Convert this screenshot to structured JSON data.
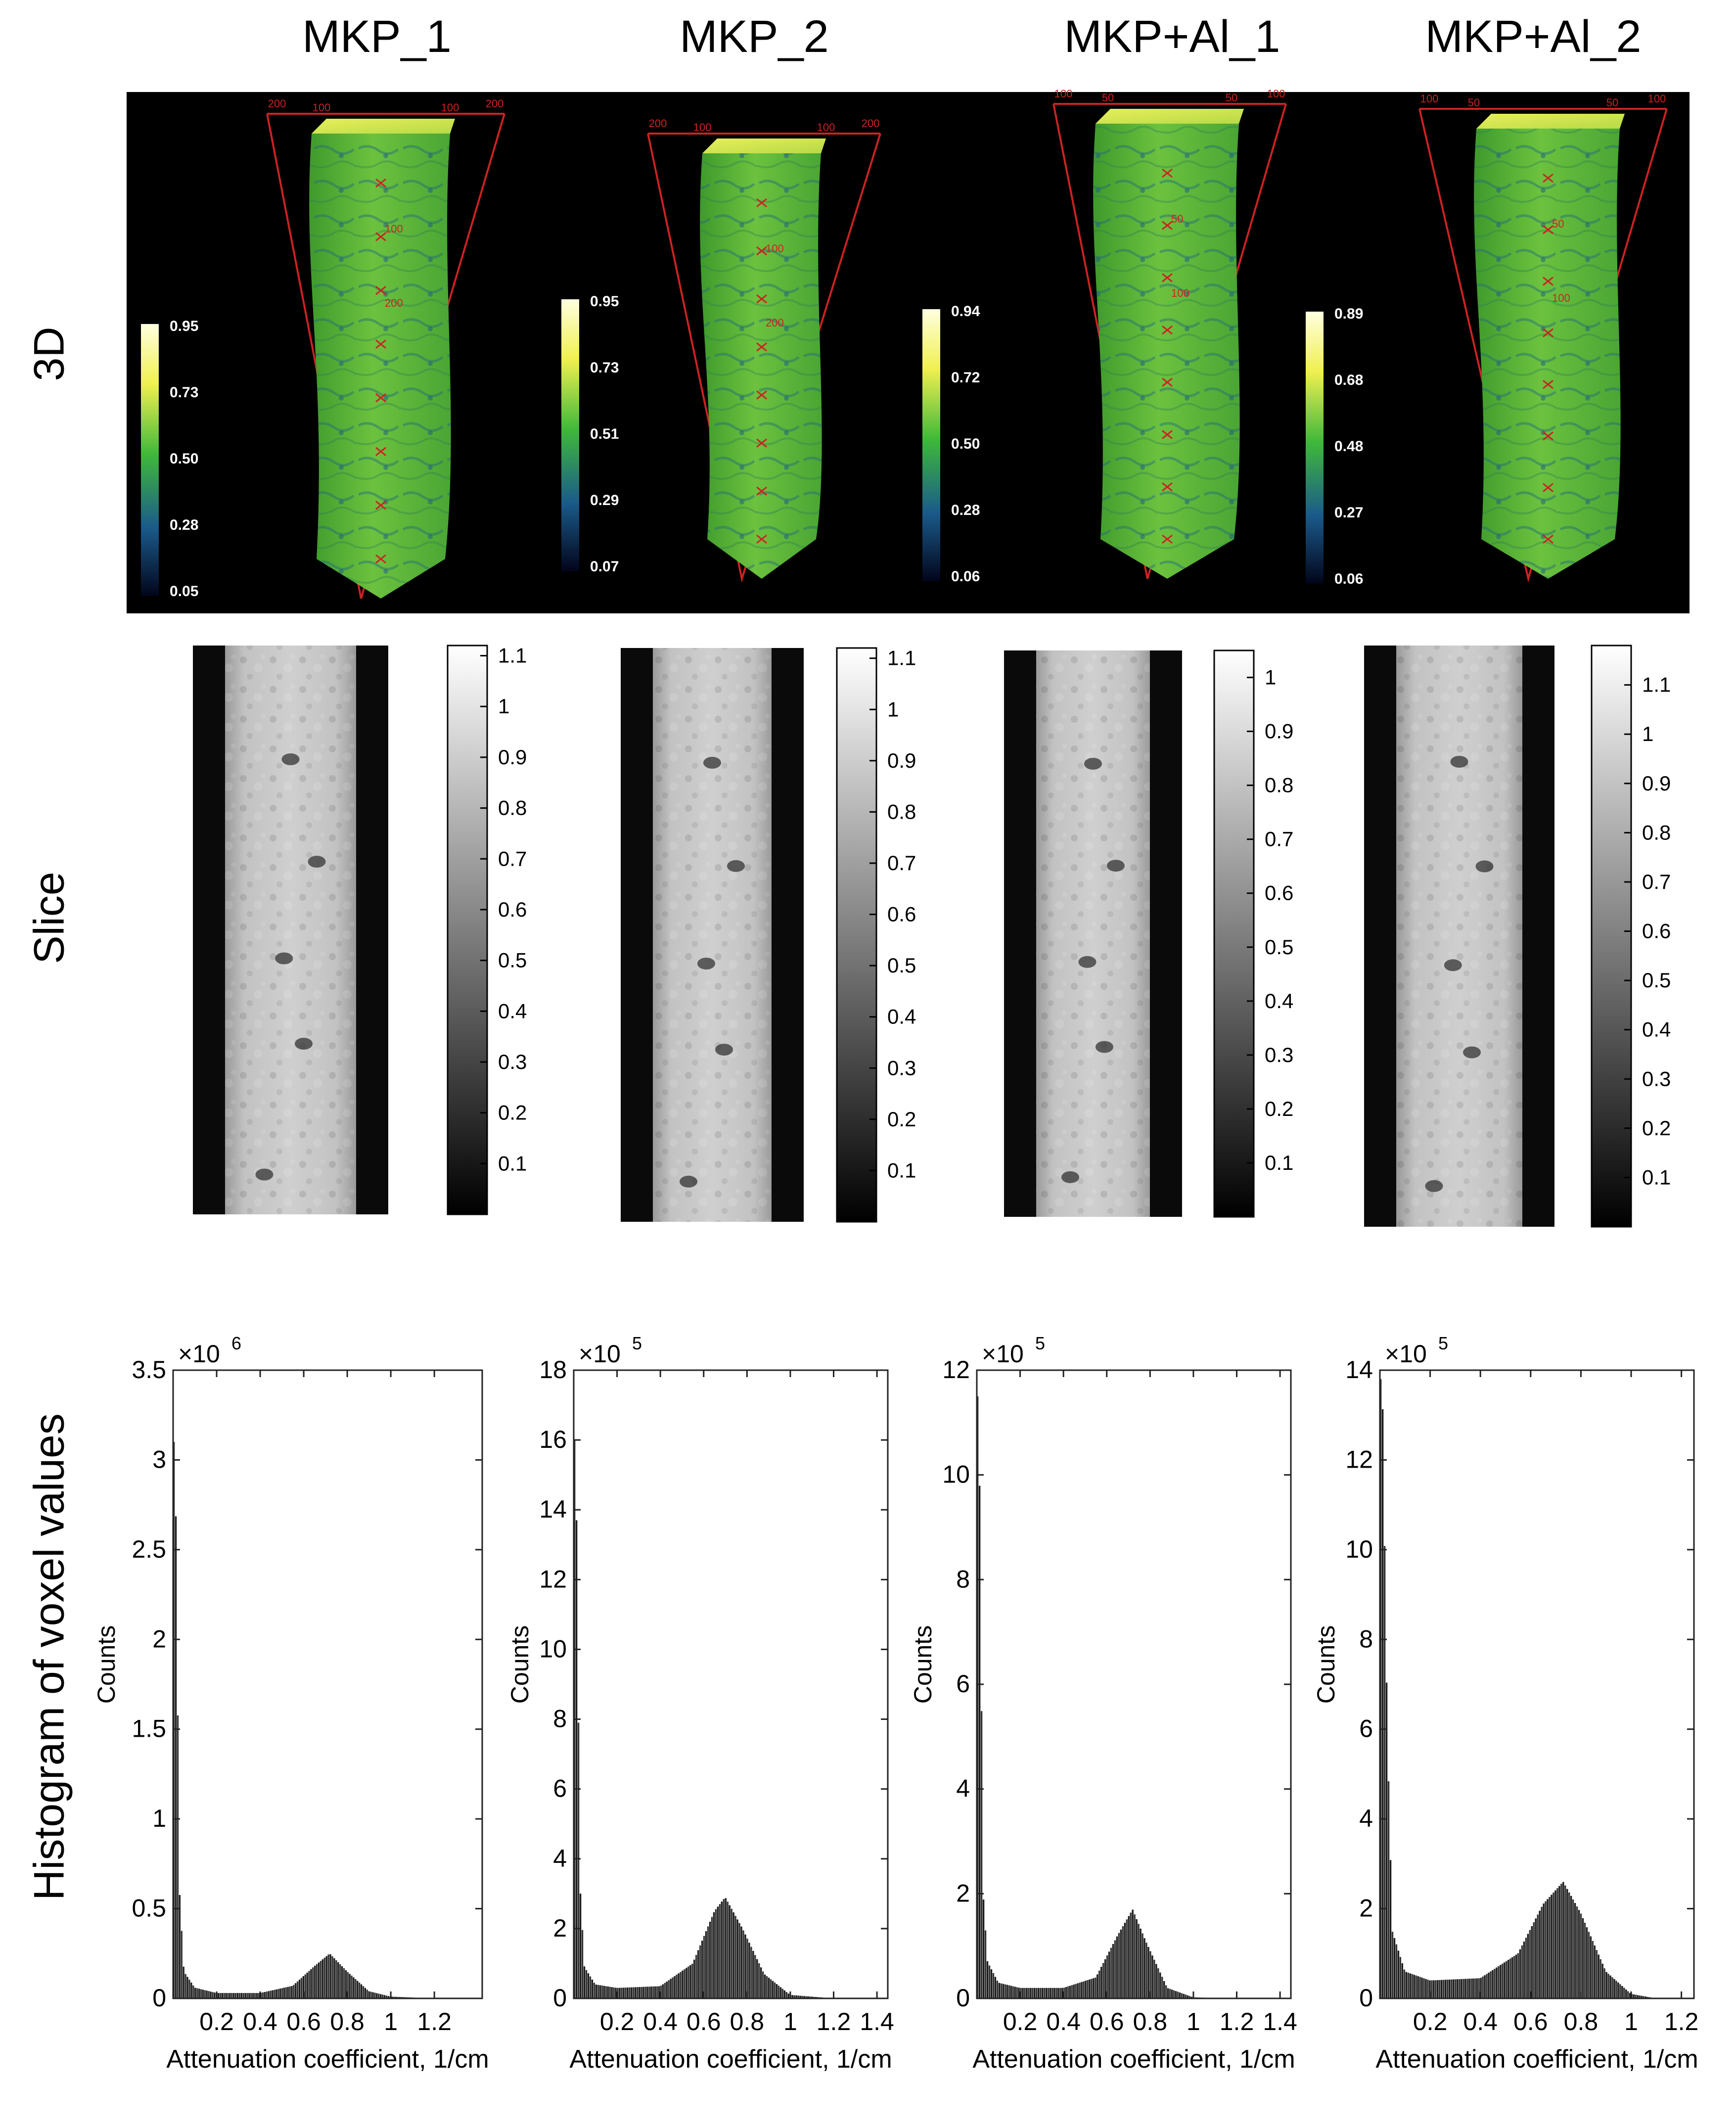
{
  "columns": [
    "MKP_1",
    "MKP_2",
    "MKP+Al_1",
    "MKP+Al_2"
  ],
  "row_labels": [
    "3D",
    "Slice",
    "Histogram of voxel values"
  ],
  "render3d": {
    "colors": {
      "background": "#000000",
      "box": "#cc2222",
      "accent": "#5fb83a"
    },
    "colorbars": [
      [
        "0.95",
        "0.73",
        "0.50",
        "0.28",
        "0.05"
      ],
      [
        "0.95",
        "0.73",
        "0.51",
        "0.29",
        "0.07"
      ],
      [
        "0.94",
        "0.72",
        "0.50",
        "0.28",
        "0.06"
      ],
      [
        "0.89",
        "0.68",
        "0.48",
        "0.27",
        "0.06"
      ]
    ],
    "box_labels": [
      {
        "corner": [
          "200",
          "100",
          "100",
          "200"
        ],
        "axis": [
          "100",
          "200"
        ]
      },
      {
        "corner": [
          "200",
          "100",
          "100",
          "200"
        ],
        "axis": [
          "100",
          "200"
        ]
      },
      {
        "corner": [
          "100",
          "50",
          "50",
          "100"
        ],
        "axis": [
          "50",
          "100"
        ]
      },
      {
        "corner": [
          "100",
          "50",
          "50",
          "100"
        ],
        "axis": [
          "50",
          "100"
        ]
      }
    ]
  },
  "slices": {
    "colorbars": [
      [
        "1.1",
        "1",
        "0.9",
        "0.8",
        "0.7",
        "0.6",
        "0.5",
        "0.4",
        "0.3",
        "0.2",
        "0.1"
      ],
      [
        "1.1",
        "1",
        "0.9",
        "0.8",
        "0.7",
        "0.6",
        "0.5",
        "0.4",
        "0.3",
        "0.2",
        "0.1"
      ],
      [
        "1",
        "0.9",
        "0.8",
        "0.7",
        "0.6",
        "0.5",
        "0.4",
        "0.3",
        "0.2",
        "0.1"
      ],
      [
        "1.1",
        "1",
        "0.9",
        "0.8",
        "0.7",
        "0.6",
        "0.5",
        "0.4",
        "0.3",
        "0.2",
        "0.1"
      ]
    ]
  },
  "chart_data": [
    {
      "type": "bar",
      "title": "",
      "xlabel": "Attenuation coefficient, 1/cm",
      "ylabel": "Counts",
      "y_multiplier": "×10",
      "y_exponent": "6",
      "xlim": [
        0,
        1.42
      ],
      "ylim": [
        0,
        3.5
      ],
      "xticks": [
        "0.2",
        "0.4",
        "0.6",
        "0.8",
        "1",
        "1.2"
      ],
      "xtick_values": [
        0.2,
        0.4,
        0.6,
        0.8,
        1.0,
        1.2
      ],
      "yticks": [
        "0",
        "0.5",
        "1",
        "1.5",
        "2",
        "2.5",
        "3",
        "3.5"
      ],
      "ytick_values": [
        0,
        0.5,
        1,
        1.5,
        2,
        2.5,
        3,
        3.5
      ],
      "grid": false,
      "x": [
        0.01,
        0.03,
        0.05,
        0.1,
        0.2,
        0.4,
        0.55,
        0.65,
        0.72,
        0.8,
        0.9,
        1.0,
        1.2,
        1.4
      ],
      "values": [
        3.1,
        0.6,
        0.15,
        0.06,
        0.03,
        0.03,
        0.07,
        0.18,
        0.25,
        0.15,
        0.04,
        0.01,
        0.0,
        0.0
      ]
    },
    {
      "type": "bar",
      "title": "",
      "xlabel": "Attenuation coefficient, 1/cm",
      "ylabel": "Counts",
      "y_multiplier": "×10",
      "y_exponent": "5",
      "xlim": [
        0,
        1.45
      ],
      "ylim": [
        0,
        18
      ],
      "xticks": [
        "0.2",
        "0.4",
        "0.6",
        "0.8",
        "1",
        "1.2",
        "1.4"
      ],
      "xtick_values": [
        0.2,
        0.4,
        0.6,
        0.8,
        1.0,
        1.2,
        1.4
      ],
      "yticks": [
        "0",
        "2",
        "4",
        "6",
        "8",
        "10",
        "12",
        "14",
        "16",
        "18"
      ],
      "ytick_values": [
        0,
        2,
        4,
        6,
        8,
        10,
        12,
        14,
        16,
        18
      ],
      "grid": false,
      "x": [
        0.01,
        0.03,
        0.05,
        0.1,
        0.2,
        0.4,
        0.55,
        0.65,
        0.7,
        0.78,
        0.88,
        1.0,
        1.2,
        1.4
      ],
      "values": [
        16.0,
        3.2,
        0.9,
        0.4,
        0.3,
        0.35,
        1.0,
        2.5,
        2.9,
        2.0,
        0.7,
        0.1,
        0.0,
        0.0
      ]
    },
    {
      "type": "bar",
      "title": "",
      "xlabel": "Attenuation coefficient, 1/cm",
      "ylabel": "Counts",
      "y_multiplier": "×10",
      "y_exponent": "5",
      "xlim": [
        0,
        1.45
      ],
      "ylim": [
        0,
        12
      ],
      "xticks": [
        "0.2",
        "0.4",
        "0.6",
        "0.8",
        "1",
        "1.2",
        "1.4"
      ],
      "xtick_values": [
        0.2,
        0.4,
        0.6,
        0.8,
        1.0,
        1.2,
        1.4
      ],
      "yticks": [
        "0",
        "2",
        "4",
        "6",
        "8",
        "10",
        "12"
      ],
      "ytick_values": [
        0,
        2,
        4,
        6,
        8,
        10,
        12
      ],
      "grid": false,
      "x": [
        0.01,
        0.03,
        0.05,
        0.1,
        0.2,
        0.4,
        0.55,
        0.65,
        0.72,
        0.78,
        0.88,
        1.0,
        1.2,
        1.4
      ],
      "values": [
        11.5,
        2.0,
        0.7,
        0.3,
        0.2,
        0.2,
        0.4,
        1.2,
        1.7,
        1.1,
        0.2,
        0.02,
        0.0,
        0.0
      ]
    },
    {
      "type": "bar",
      "title": "",
      "xlabel": "Attenuation coefficient, 1/cm",
      "ylabel": "Counts",
      "y_multiplier": "×10",
      "y_exponent": "5",
      "xlim": [
        0,
        1.25
      ],
      "ylim": [
        0,
        14
      ],
      "xticks": [
        "0.2",
        "0.4",
        "0.6",
        "0.8",
        "1",
        "1.2"
      ],
      "xtick_values": [
        0.2,
        0.4,
        0.6,
        0.8,
        1.0,
        1.2
      ],
      "yticks": [
        "0",
        "2",
        "4",
        "6",
        "8",
        "10",
        "12",
        "14"
      ],
      "ytick_values": [
        0,
        2,
        4,
        6,
        8,
        10,
        12,
        14
      ],
      "grid": false,
      "x": [
        0.01,
        0.03,
        0.05,
        0.1,
        0.2,
        0.4,
        0.55,
        0.65,
        0.73,
        0.8,
        0.9,
        1.0,
        1.1,
        1.2
      ],
      "values": [
        13.8,
        6.0,
        1.5,
        0.6,
        0.4,
        0.45,
        1.0,
        2.1,
        2.6,
        1.9,
        0.6,
        0.1,
        0.0,
        0.0
      ]
    }
  ]
}
